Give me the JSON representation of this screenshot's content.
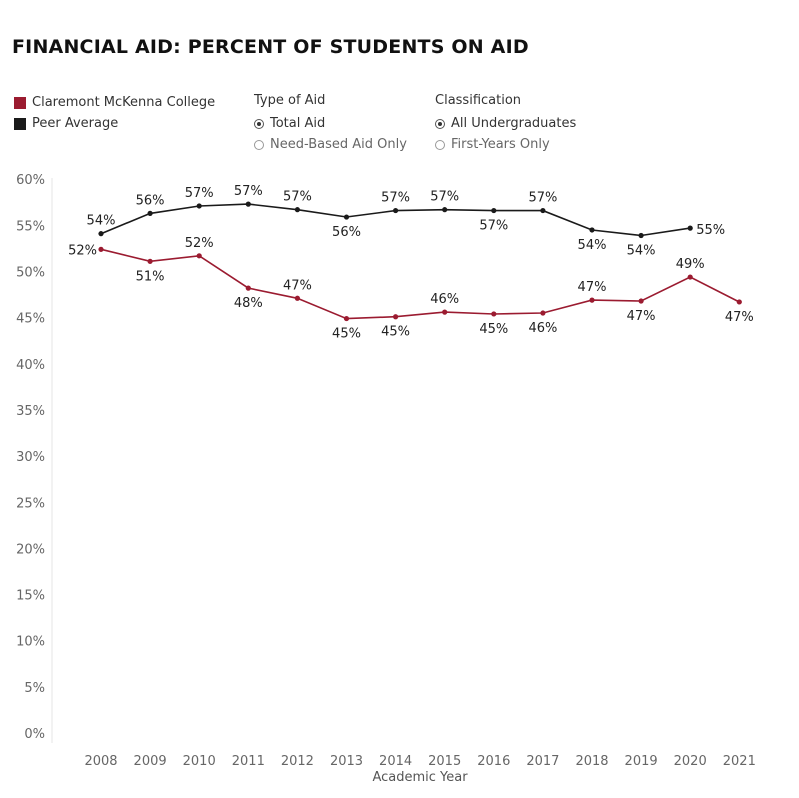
{
  "header": {
    "title": "FINANCIAL AID: PERCENT OF STUDENTS ON AID"
  },
  "legend": {
    "items": [
      {
        "label": "Claremont McKenna College",
        "color": "#9b1b30"
      },
      {
        "label": "Peer Average",
        "color": "#1a1a1a"
      }
    ]
  },
  "filters": {
    "type_of_aid": {
      "title": "Type of Aid",
      "options": [
        {
          "label": "Total Aid",
          "selected": true
        },
        {
          "label": "Need-Based Aid Only",
          "selected": false
        }
      ]
    },
    "classification": {
      "title": "Classification",
      "options": [
        {
          "label": "All Undergraduates",
          "selected": true
        },
        {
          "label": "First-Years Only",
          "selected": false
        }
      ]
    }
  },
  "chart_data": {
    "type": "line",
    "title": "FINANCIAL AID: PERCENT OF STUDENTS ON AID",
    "xlabel": "Academic Year",
    "ylabel": "",
    "ylim": [
      0,
      60
    ],
    "yticks": [
      0,
      5,
      10,
      15,
      20,
      25,
      30,
      35,
      40,
      45,
      50,
      55,
      60
    ],
    "ytick_labels": [
      "0%",
      "5%",
      "10%",
      "15%",
      "20%",
      "25%",
      "30%",
      "35%",
      "40%",
      "45%",
      "50%",
      "55%",
      "60%"
    ],
    "grid": false,
    "legend_position": "top-left",
    "categories": [
      "2008",
      "2009",
      "2010",
      "2011",
      "2012",
      "2013",
      "2014",
      "2015",
      "2016",
      "2017",
      "2018",
      "2019",
      "2020",
      "2021"
    ],
    "series": [
      {
        "name": "Peer Average",
        "color": "#1a1a1a",
        "values": [
          54.1,
          56.3,
          57.1,
          57.3,
          56.7,
          55.9,
          56.6,
          56.7,
          56.6,
          56.6,
          54.5,
          53.9,
          54.7,
          null
        ],
        "labels": [
          "54%",
          "56%",
          "57%",
          "57%",
          "57%",
          "56%",
          "57%",
          "57%",
          "57%",
          "57%",
          "54%",
          "54%",
          "55%",
          ""
        ],
        "label_pos": [
          "above",
          "above",
          "above",
          "above",
          "above",
          "below",
          "above",
          "above",
          "below",
          "above",
          "below",
          "below",
          "right",
          ""
        ]
      },
      {
        "name": "Claremont McKenna College",
        "color": "#9b1b30",
        "values": [
          52.4,
          51.1,
          51.7,
          48.2,
          47.1,
          44.9,
          45.1,
          45.6,
          45.4,
          45.5,
          46.9,
          46.8,
          49.4,
          46.7
        ],
        "labels": [
          "52%",
          "51%",
          "52%",
          "48%",
          "47%",
          "45%",
          "45%",
          "46%",
          "45%",
          "46%",
          "47%",
          "47%",
          "49%",
          "47%"
        ],
        "label_pos": [
          "left",
          "below",
          "above",
          "below",
          "above",
          "below",
          "below",
          "above",
          "below",
          "below",
          "above",
          "below",
          "above",
          "below"
        ]
      }
    ]
  }
}
